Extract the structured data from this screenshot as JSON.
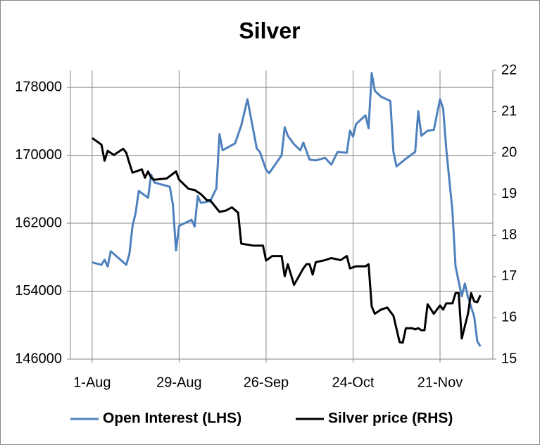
{
  "chart_data": {
    "type": "line",
    "title": "Silver",
    "xlim": [
      -7,
      129
    ],
    "xticks": [
      {
        "value": 0,
        "label": "1-Aug"
      },
      {
        "value": 28,
        "label": "29-Aug"
      },
      {
        "value": 56,
        "label": "26-Sep"
      },
      {
        "value": 84,
        "label": "24-Oct"
      },
      {
        "value": 112,
        "label": "21-Nov"
      }
    ],
    "ylim": [
      146000,
      180000
    ],
    "yticks": [
      146000,
      154000,
      162000,
      170000,
      178000
    ],
    "y2lim": [
      15,
      22
    ],
    "y2ticks": [
      15,
      16,
      17,
      18,
      19,
      20,
      21,
      22
    ],
    "grid": true,
    "legend": "bottom",
    "series": [
      {
        "name": "Open Interest (LHS)",
        "color": "#4f81bd",
        "x": [
          0,
          3,
          4,
          5,
          6,
          11,
          12,
          13,
          14,
          15,
          18,
          19,
          20,
          25,
          26,
          27,
          28,
          32,
          33,
          34,
          35,
          38,
          40,
          41,
          42,
          46,
          48,
          50,
          53,
          54,
          56,
          57,
          61,
          62,
          63,
          65,
          67,
          68,
          69,
          70,
          72,
          75,
          76,
          77,
          79,
          82,
          83,
          84,
          85,
          88,
          89,
          90,
          91,
          93,
          96,
          97,
          98,
          101,
          104,
          105,
          106,
          108,
          110,
          112,
          113,
          114,
          116,
          117,
          119,
          120,
          121,
          123,
          124,
          125
        ],
        "values": [
          157400,
          157100,
          157700,
          156900,
          158700,
          157100,
          158400,
          161700,
          163200,
          165800,
          165000,
          167700,
          166800,
          166300,
          164200,
          158800,
          161700,
          162400,
          161600,
          165200,
          164400,
          164600,
          166100,
          172500,
          170600,
          171400,
          173500,
          176600,
          170800,
          170400,
          168300,
          167900,
          170000,
          173300,
          172300,
          171300,
          170600,
          171500,
          170500,
          169500,
          169400,
          169700,
          169300,
          168900,
          170400,
          170300,
          172900,
          172200,
          173700,
          174700,
          173200,
          179700,
          177600,
          176900,
          176400,
          170400,
          168700,
          169600,
          170400,
          175200,
          172300,
          172900,
          173000,
          176600,
          175500,
          170800,
          163400,
          156900,
          153400,
          154900,
          153300,
          151000,
          148100,
          147500
        ]
      },
      {
        "name": "Silver price (RHS)",
        "color": "#000000",
        "axis": "y2",
        "x": [
          0,
          3,
          4,
          5,
          7,
          10,
          11,
          12,
          13,
          16,
          17,
          18,
          19,
          20,
          24,
          27,
          28,
          31,
          33,
          35,
          37,
          38,
          41,
          43,
          45,
          47,
          48,
          52,
          55,
          56,
          58,
          61,
          62,
          63,
          65,
          68,
          69,
          70,
          71,
          72,
          75,
          77,
          80,
          82,
          83,
          85,
          88,
          89,
          90,
          91,
          93,
          95,
          97,
          99,
          100,
          101,
          103,
          104,
          105,
          106,
          107,
          108,
          110,
          112,
          113,
          114,
          116,
          117,
          118,
          119,
          121,
          122,
          123,
          124,
          125
        ],
        "values": [
          20.36,
          20.2,
          19.81,
          20.05,
          19.95,
          20.1,
          20.0,
          19.75,
          19.52,
          19.6,
          19.4,
          19.55,
          19.4,
          19.35,
          19.38,
          19.55,
          19.35,
          19.13,
          19.1,
          19.0,
          18.85,
          18.85,
          18.57,
          18.6,
          18.68,
          18.55,
          17.8,
          17.75,
          17.75,
          17.39,
          17.5,
          17.5,
          17.01,
          17.3,
          16.8,
          17.2,
          17.3,
          17.3,
          17.05,
          17.35,
          17.4,
          17.45,
          17.4,
          17.5,
          17.2,
          17.25,
          17.25,
          17.3,
          16.28,
          16.1,
          16.2,
          16.25,
          16.05,
          15.41,
          15.4,
          15.75,
          15.75,
          15.72,
          15.75,
          15.7,
          15.7,
          16.33,
          16.1,
          16.3,
          16.2,
          16.35,
          16.35,
          16.6,
          16.6,
          15.5,
          16.1,
          16.6,
          16.4,
          16.38,
          16.55
        ]
      }
    ]
  }
}
